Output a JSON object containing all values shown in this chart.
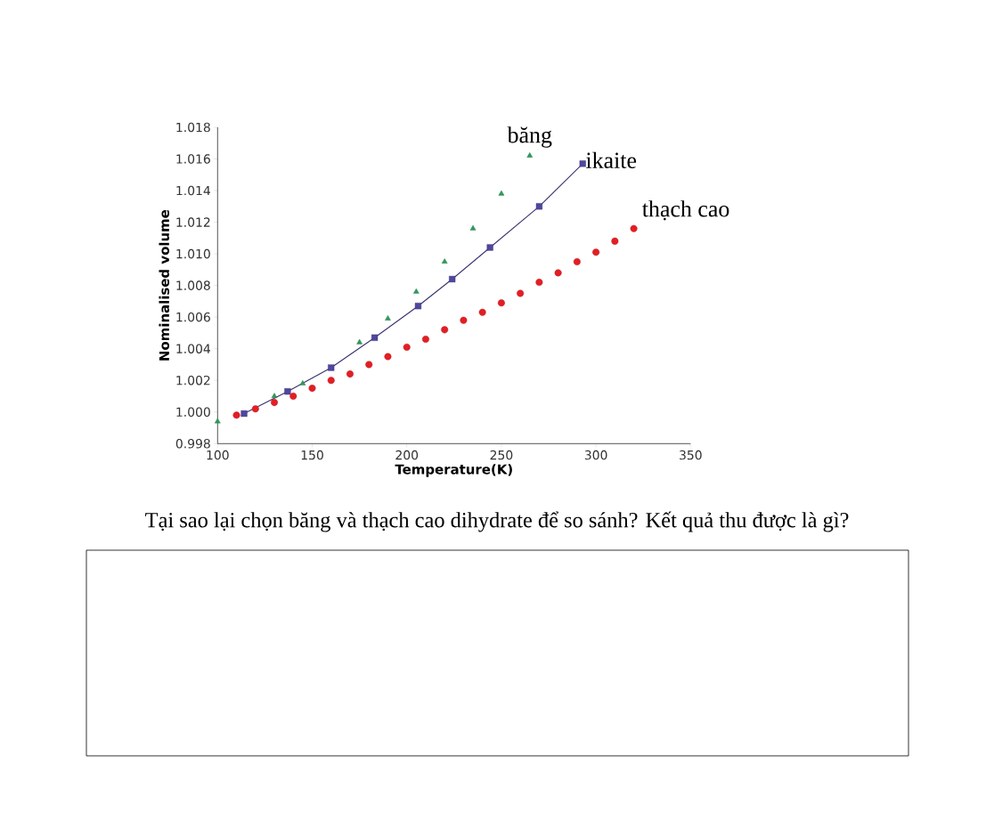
{
  "chart_data": {
    "type": "scatter",
    "xlabel": "Temperature(K)",
    "ylabel": "Nominalised volume",
    "xlim": [
      100,
      350
    ],
    "xticks": [
      100,
      150,
      200,
      250,
      300,
      350
    ],
    "ylim": [
      0.998,
      1.018
    ],
    "yticks": [
      0.998,
      {
        "value": 1.0,
        "label": "1.000"
      },
      1.002,
      1.004,
      1.006,
      1.008,
      {
        "value": 1.01,
        "label": "1.010"
      },
      1.012,
      1.014,
      1.016,
      1.018
    ],
    "grid": false,
    "series": [
      {
        "name": "băng",
        "marker": "triangle",
        "color": "#2e9a5a",
        "x": [
          100,
          130,
          145,
          175,
          190,
          205,
          220,
          235,
          250,
          265
        ],
        "values": [
          0.9994,
          1.001,
          1.0018,
          1.0044,
          1.0059,
          1.0076,
          1.0095,
          1.0116,
          1.0138,
          1.0162
        ]
      },
      {
        "name": "ikaite",
        "type": "line",
        "marker": "square",
        "line_style": "solid",
        "color": "#4f46a0",
        "x": [
          114,
          137,
          160,
          183,
          206,
          224,
          244,
          270,
          293
        ],
        "values": [
          0.9999,
          1.0013,
          1.0028,
          1.0047,
          1.0067,
          1.0084,
          1.0104,
          1.013,
          1.0157
        ]
      },
      {
        "name": "thạch cao",
        "marker": "circle",
        "color": "#e31e24",
        "x": [
          110,
          120,
          130,
          140,
          150,
          160,
          170,
          180,
          190,
          200,
          210,
          220,
          230,
          240,
          250,
          260,
          270,
          280,
          290,
          300,
          310,
          320
        ],
        "values": [
          0.9998,
          1.0002,
          1.0006,
          1.001,
          1.0015,
          1.002,
          1.0024,
          1.003,
          1.0035,
          1.0041,
          1.0046,
          1.0052,
          1.0058,
          1.0063,
          1.0069,
          1.0075,
          1.0082,
          1.0088,
          1.0095,
          1.0101,
          1.0108,
          1.0116
        ]
      }
    ],
    "annotations": [
      "Tại sao lại chọn băng và thạch cao dihydrate để so sánh? Kết quả thu được là gì?"
    ]
  }
}
